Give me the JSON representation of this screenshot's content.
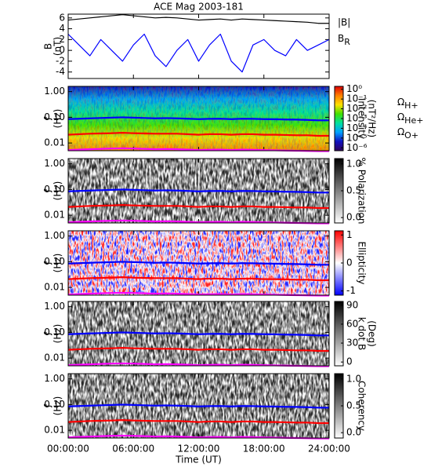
{
  "chart_data": [
    {
      "type": "line",
      "title": "ACE Mag 2003-181",
      "ylabel": [
        "B",
        "(nT)"
      ],
      "x": [
        0,
        1,
        2,
        3,
        4,
        5,
        6,
        7,
        8,
        9,
        10,
        11,
        12,
        13,
        14,
        15,
        16,
        17,
        18,
        19,
        20,
        21,
        22,
        23,
        24
      ],
      "xlim": [
        0,
        24
      ],
      "ylim": [
        -5.2,
        6.7
      ],
      "yticks": [
        -4,
        -2,
        0,
        2,
        4,
        6
      ],
      "series": [
        {
          "name": "|B|",
          "color": "#000000",
          "values": [
            5.6,
            5.8,
            6.0,
            6.2,
            6.4,
            6.6,
            6.4,
            6.2,
            6.0,
            6.1,
            6.0,
            5.8,
            5.6,
            5.7,
            5.8,
            5.6,
            5.8,
            5.7,
            5.6,
            5.5,
            5.4,
            5.3,
            5.2,
            5.0,
            5.0
          ]
        },
        {
          "name": "BR",
          "color": "#0000ff",
          "values": [
            3,
            1,
            -1,
            2,
            0,
            -2,
            1,
            3,
            -1,
            -3,
            0,
            2,
            -2,
            1,
            3,
            -2,
            -4,
            1,
            2,
            0,
            -1,
            2,
            0,
            1,
            2
          ]
        }
      ]
    },
    {
      "type": "spectrogram",
      "ylabel": [
        "f",
        "(Hz)"
      ],
      "ylog": true,
      "x": [
        0,
        1,
        2,
        3,
        4,
        5,
        6,
        7,
        8,
        9,
        10,
        11,
        12,
        13,
        14,
        15,
        16,
        17,
        18,
        19,
        20,
        21,
        22,
        23,
        24
      ],
      "xlim": [
        0,
        24
      ],
      "ylim": [
        0.005,
        1.6
      ],
      "yticks": [
        {
          "value": 1,
          "label": "1.00"
        },
        {
          "value": 0.1,
          "label": "0.10"
        },
        {
          "value": 0.01,
          "label": "0.01"
        }
      ],
      "colorbar": {
        "label": [
          "Intensity",
          "(nT²/Hz)"
        ],
        "log": true,
        "lim": [
          5e-07,
          2
        ],
        "ticks": [
          {
            "value": 1,
            "label": "10⁰"
          },
          {
            "value": 0.1,
            "label": "10⁻¹"
          },
          {
            "value": 0.01,
            "label": "10⁻²"
          },
          {
            "value": 0.001,
            "label": "10⁻³"
          },
          {
            "value": 0.0001,
            "label": "10⁻⁴"
          },
          {
            "value": 1e-05,
            "label": "10⁻⁵"
          },
          {
            "value": 1e-06,
            "label": "10⁻⁶"
          }
        ],
        "colors": [
          "#300060",
          "#1010c0",
          "#00a0ff",
          "#00e0a0",
          "#40e000",
          "#ffe000",
          "#ff8000",
          "#e00000"
        ]
      },
      "series": [
        {
          "name": "ΩH+",
          "color": "#0000ff",
          "values": [
            0.085,
            0.088,
            0.091,
            0.094,
            0.097,
            0.1,
            0.097,
            0.094,
            0.091,
            0.093,
            0.091,
            0.088,
            0.085,
            0.087,
            0.088,
            0.085,
            0.088,
            0.087,
            0.085,
            0.084,
            0.082,
            0.081,
            0.079,
            0.076,
            0.076
          ]
        },
        {
          "name": "ΩHe+",
          "color": "#ff0000",
          "values": [
            0.021,
            0.022,
            0.023,
            0.0235,
            0.024,
            0.025,
            0.024,
            0.0235,
            0.023,
            0.023,
            0.023,
            0.022,
            0.021,
            0.022,
            0.022,
            0.021,
            0.022,
            0.022,
            0.021,
            0.021,
            0.0205,
            0.02,
            0.02,
            0.019,
            0.019
          ]
        },
        {
          "name": "ΩO+",
          "color": "#ff00ff",
          "values": [
            0.0053,
            0.0055,
            0.0057,
            0.0059,
            0.0061,
            0.0062,
            0.0061,
            0.0059,
            0.0057,
            0.0058,
            0.0057,
            0.0055,
            0.0053,
            0.0054,
            0.0055,
            0.0053,
            0.0055,
            0.0054,
            0.0053,
            0.0052,
            0.0051,
            0.005,
            0.0049,
            0.0048,
            0.0048
          ]
        }
      ]
    },
    {
      "type": "spectrogram",
      "ylabel": [
        "f",
        "(Hz)"
      ],
      "ylog": true,
      "x": [
        0,
        1,
        2,
        3,
        4,
        5,
        6,
        7,
        8,
        9,
        10,
        11,
        12,
        13,
        14,
        15,
        16,
        17,
        18,
        19,
        20,
        21,
        22,
        23,
        24
      ],
      "xlim": [
        0,
        24
      ],
      "ylim": [
        0.005,
        1.6
      ],
      "yticks": [
        {
          "value": 1,
          "label": "1.00"
        },
        {
          "value": 0.1,
          "label": "0.10"
        },
        {
          "value": 0.01,
          "label": "0.01"
        }
      ],
      "colorbar": {
        "label": [
          "% Polarization"
        ],
        "lim": [
          -0.1,
          1.1
        ],
        "ticks": [
          {
            "value": 0,
            "label": "0.0"
          },
          {
            "value": 0.5,
            "label": "0.5"
          },
          {
            "value": 1,
            "label": "1.0"
          }
        ],
        "colors": [
          "#ffffff",
          "#000000"
        ]
      },
      "series": [
        {
          "color": "#0000ff",
          "values": [
            0.085,
            0.088,
            0.091,
            0.094,
            0.097,
            0.1,
            0.097,
            0.094,
            0.091,
            0.093,
            0.091,
            0.088,
            0.085,
            0.087,
            0.088,
            0.085,
            0.088,
            0.087,
            0.085,
            0.084,
            0.082,
            0.081,
            0.079,
            0.076,
            0.076
          ]
        },
        {
          "color": "#ff0000",
          "values": [
            0.021,
            0.022,
            0.023,
            0.0235,
            0.024,
            0.025,
            0.024,
            0.0235,
            0.023,
            0.023,
            0.023,
            0.022,
            0.021,
            0.022,
            0.022,
            0.021,
            0.022,
            0.022,
            0.021,
            0.021,
            0.0205,
            0.02,
            0.02,
            0.019,
            0.019
          ]
        },
        {
          "color": "#ff00ff",
          "values": [
            0.0053,
            0.0055,
            0.0057,
            0.0059,
            0.0061,
            0.0062,
            0.0061,
            0.0059,
            0.0057,
            0.0058,
            0.0057,
            0.0055,
            0.0053,
            0.0054,
            0.0055,
            0.0053,
            0.0055,
            0.0054,
            0.0053,
            0.0052,
            0.0051,
            0.005,
            0.0049,
            0.0048,
            0.0048
          ]
        }
      ]
    },
    {
      "type": "spectrogram",
      "ylabel": [
        "f",
        "(Hz)"
      ],
      "ylog": true,
      "x": [
        0,
        1,
        2,
        3,
        4,
        5,
        6,
        7,
        8,
        9,
        10,
        11,
        12,
        13,
        14,
        15,
        16,
        17,
        18,
        19,
        20,
        21,
        22,
        23,
        24
      ],
      "xlim": [
        0,
        24
      ],
      "ylim": [
        0.005,
        1.6
      ],
      "yticks": [
        {
          "value": 1,
          "label": "1.00"
        },
        {
          "value": 0.1,
          "label": "0.10"
        },
        {
          "value": 0.01,
          "label": "0.01"
        }
      ],
      "colorbar": {
        "label": [
          "Ellipticity"
        ],
        "lim": [
          -1.15,
          1.15
        ],
        "ticks": [
          -1,
          0,
          1
        ],
        "colors": [
          "#0000ff",
          "#ffffff",
          "#ff0000"
        ]
      },
      "series": [
        {
          "color": "#0000ff",
          "values": [
            0.085,
            0.088,
            0.091,
            0.094,
            0.097,
            0.1,
            0.097,
            0.094,
            0.091,
            0.093,
            0.091,
            0.088,
            0.085,
            0.087,
            0.088,
            0.085,
            0.088,
            0.087,
            0.085,
            0.084,
            0.082,
            0.081,
            0.079,
            0.076,
            0.076
          ]
        },
        {
          "color": "#ff0000",
          "values": [
            0.021,
            0.022,
            0.023,
            0.0235,
            0.024,
            0.025,
            0.024,
            0.0235,
            0.023,
            0.023,
            0.023,
            0.022,
            0.021,
            0.022,
            0.022,
            0.021,
            0.022,
            0.022,
            0.021,
            0.021,
            0.0205,
            0.02,
            0.02,
            0.019,
            0.019
          ]
        },
        {
          "color": "#ff00ff",
          "values": [
            0.0053,
            0.0055,
            0.0057,
            0.0059,
            0.0061,
            0.0062,
            0.0061,
            0.0059,
            0.0057,
            0.0058,
            0.0057,
            0.0055,
            0.0053,
            0.0054,
            0.0055,
            0.0053,
            0.0055,
            0.0054,
            0.0053,
            0.0052,
            0.0051,
            0.005,
            0.0049,
            0.0048,
            0.0048
          ]
        }
      ]
    },
    {
      "type": "spectrogram",
      "ylabel": [
        "f",
        "(Hz)"
      ],
      "ylog": true,
      "x": [
        0,
        1,
        2,
        3,
        4,
        5,
        6,
        7,
        8,
        9,
        10,
        11,
        12,
        13,
        14,
        15,
        16,
        17,
        18,
        19,
        20,
        21,
        22,
        23,
        24
      ],
      "xlim": [
        0,
        24
      ],
      "ylim": [
        0.005,
        1.6
      ],
      "yticks": [
        {
          "value": 1,
          "label": "1.00"
        },
        {
          "value": 0.1,
          "label": "0.10"
        },
        {
          "value": 0.01,
          "label": "0.01"
        }
      ],
      "colorbar": {
        "label": [
          "k dot B",
          "(Deg)"
        ],
        "lim": [
          -6,
          96
        ],
        "ticks": [
          0,
          30,
          60,
          90
        ],
        "colors": [
          "#ffffff",
          "#000000"
        ]
      },
      "series": [
        {
          "color": "#0000ff",
          "values": [
            0.085,
            0.088,
            0.091,
            0.094,
            0.097,
            0.1,
            0.097,
            0.094,
            0.091,
            0.093,
            0.091,
            0.088,
            0.085,
            0.087,
            0.088,
            0.085,
            0.088,
            0.087,
            0.085,
            0.084,
            0.082,
            0.081,
            0.079,
            0.076,
            0.076
          ]
        },
        {
          "color": "#ff0000",
          "values": [
            0.021,
            0.022,
            0.023,
            0.0235,
            0.024,
            0.025,
            0.024,
            0.0235,
            0.023,
            0.023,
            0.023,
            0.022,
            0.021,
            0.022,
            0.022,
            0.021,
            0.022,
            0.022,
            0.021,
            0.021,
            0.0205,
            0.02,
            0.02,
            0.019,
            0.019
          ]
        },
        {
          "color": "#ff00ff",
          "values": [
            0.0053,
            0.0055,
            0.0057,
            0.0059,
            0.0061,
            0.0062,
            0.0061,
            0.0059,
            0.0057,
            0.0058,
            0.0057,
            0.0055,
            0.0053,
            0.0054,
            0.0055,
            0.0053,
            0.0055,
            0.0054,
            0.0053,
            0.0052,
            0.0051,
            0.005,
            0.0049,
            0.0048,
            0.0048
          ]
        }
      ]
    },
    {
      "type": "spectrogram",
      "ylabel": [
        "f",
        "(Hz)"
      ],
      "ylog": true,
      "xlabel": "Time (UT)",
      "x": [
        0,
        1,
        2,
        3,
        4,
        5,
        6,
        7,
        8,
        9,
        10,
        11,
        12,
        13,
        14,
        15,
        16,
        17,
        18,
        19,
        20,
        21,
        22,
        23,
        24
      ],
      "xlim": [
        0,
        24
      ],
      "xticks": [
        {
          "value": 0,
          "label": "00:00:00"
        },
        {
          "value": 6,
          "label": "06:00:00"
        },
        {
          "value": 12,
          "label": "12:00:00"
        },
        {
          "value": 18,
          "label": "18:00:00"
        },
        {
          "value": 24,
          "label": "24:00:00"
        }
      ],
      "ylim": [
        0.005,
        1.6
      ],
      "yticks": [
        {
          "value": 1,
          "label": "1.00"
        },
        {
          "value": 0.1,
          "label": "0.10"
        },
        {
          "value": 0.01,
          "label": "0.01"
        }
      ],
      "colorbar": {
        "label": [
          "Coherency"
        ],
        "lim": [
          -0.1,
          1.1
        ],
        "ticks": [
          {
            "value": 0,
            "label": "0.0"
          },
          {
            "value": 0.5,
            "label": "0.5"
          },
          {
            "value": 1,
            "label": "1.0"
          }
        ],
        "colors": [
          "#ffffff",
          "#000000"
        ]
      },
      "series": [
        {
          "color": "#0000ff",
          "values": [
            0.085,
            0.088,
            0.091,
            0.094,
            0.097,
            0.1,
            0.097,
            0.094,
            0.091,
            0.093,
            0.091,
            0.088,
            0.085,
            0.087,
            0.088,
            0.085,
            0.088,
            0.087,
            0.085,
            0.084,
            0.082,
            0.081,
            0.079,
            0.076,
            0.076
          ]
        },
        {
          "color": "#ff0000",
          "values": [
            0.021,
            0.022,
            0.023,
            0.0235,
            0.024,
            0.025,
            0.024,
            0.0235,
            0.023,
            0.023,
            0.023,
            0.022,
            0.021,
            0.022,
            0.022,
            0.021,
            0.022,
            0.022,
            0.021,
            0.021,
            0.0205,
            0.02,
            0.02,
            0.019,
            0.019
          ]
        },
        {
          "color": "#ff00ff",
          "values": [
            0.0053,
            0.0055,
            0.0057,
            0.0059,
            0.0061,
            0.0062,
            0.0061,
            0.0059,
            0.0057,
            0.0058,
            0.0057,
            0.0055,
            0.0053,
            0.0054,
            0.0055,
            0.0053,
            0.0055,
            0.0054,
            0.0053,
            0.0052,
            0.0051,
            0.005,
            0.0049,
            0.0048,
            0.0048
          ]
        }
      ]
    }
  ]
}
